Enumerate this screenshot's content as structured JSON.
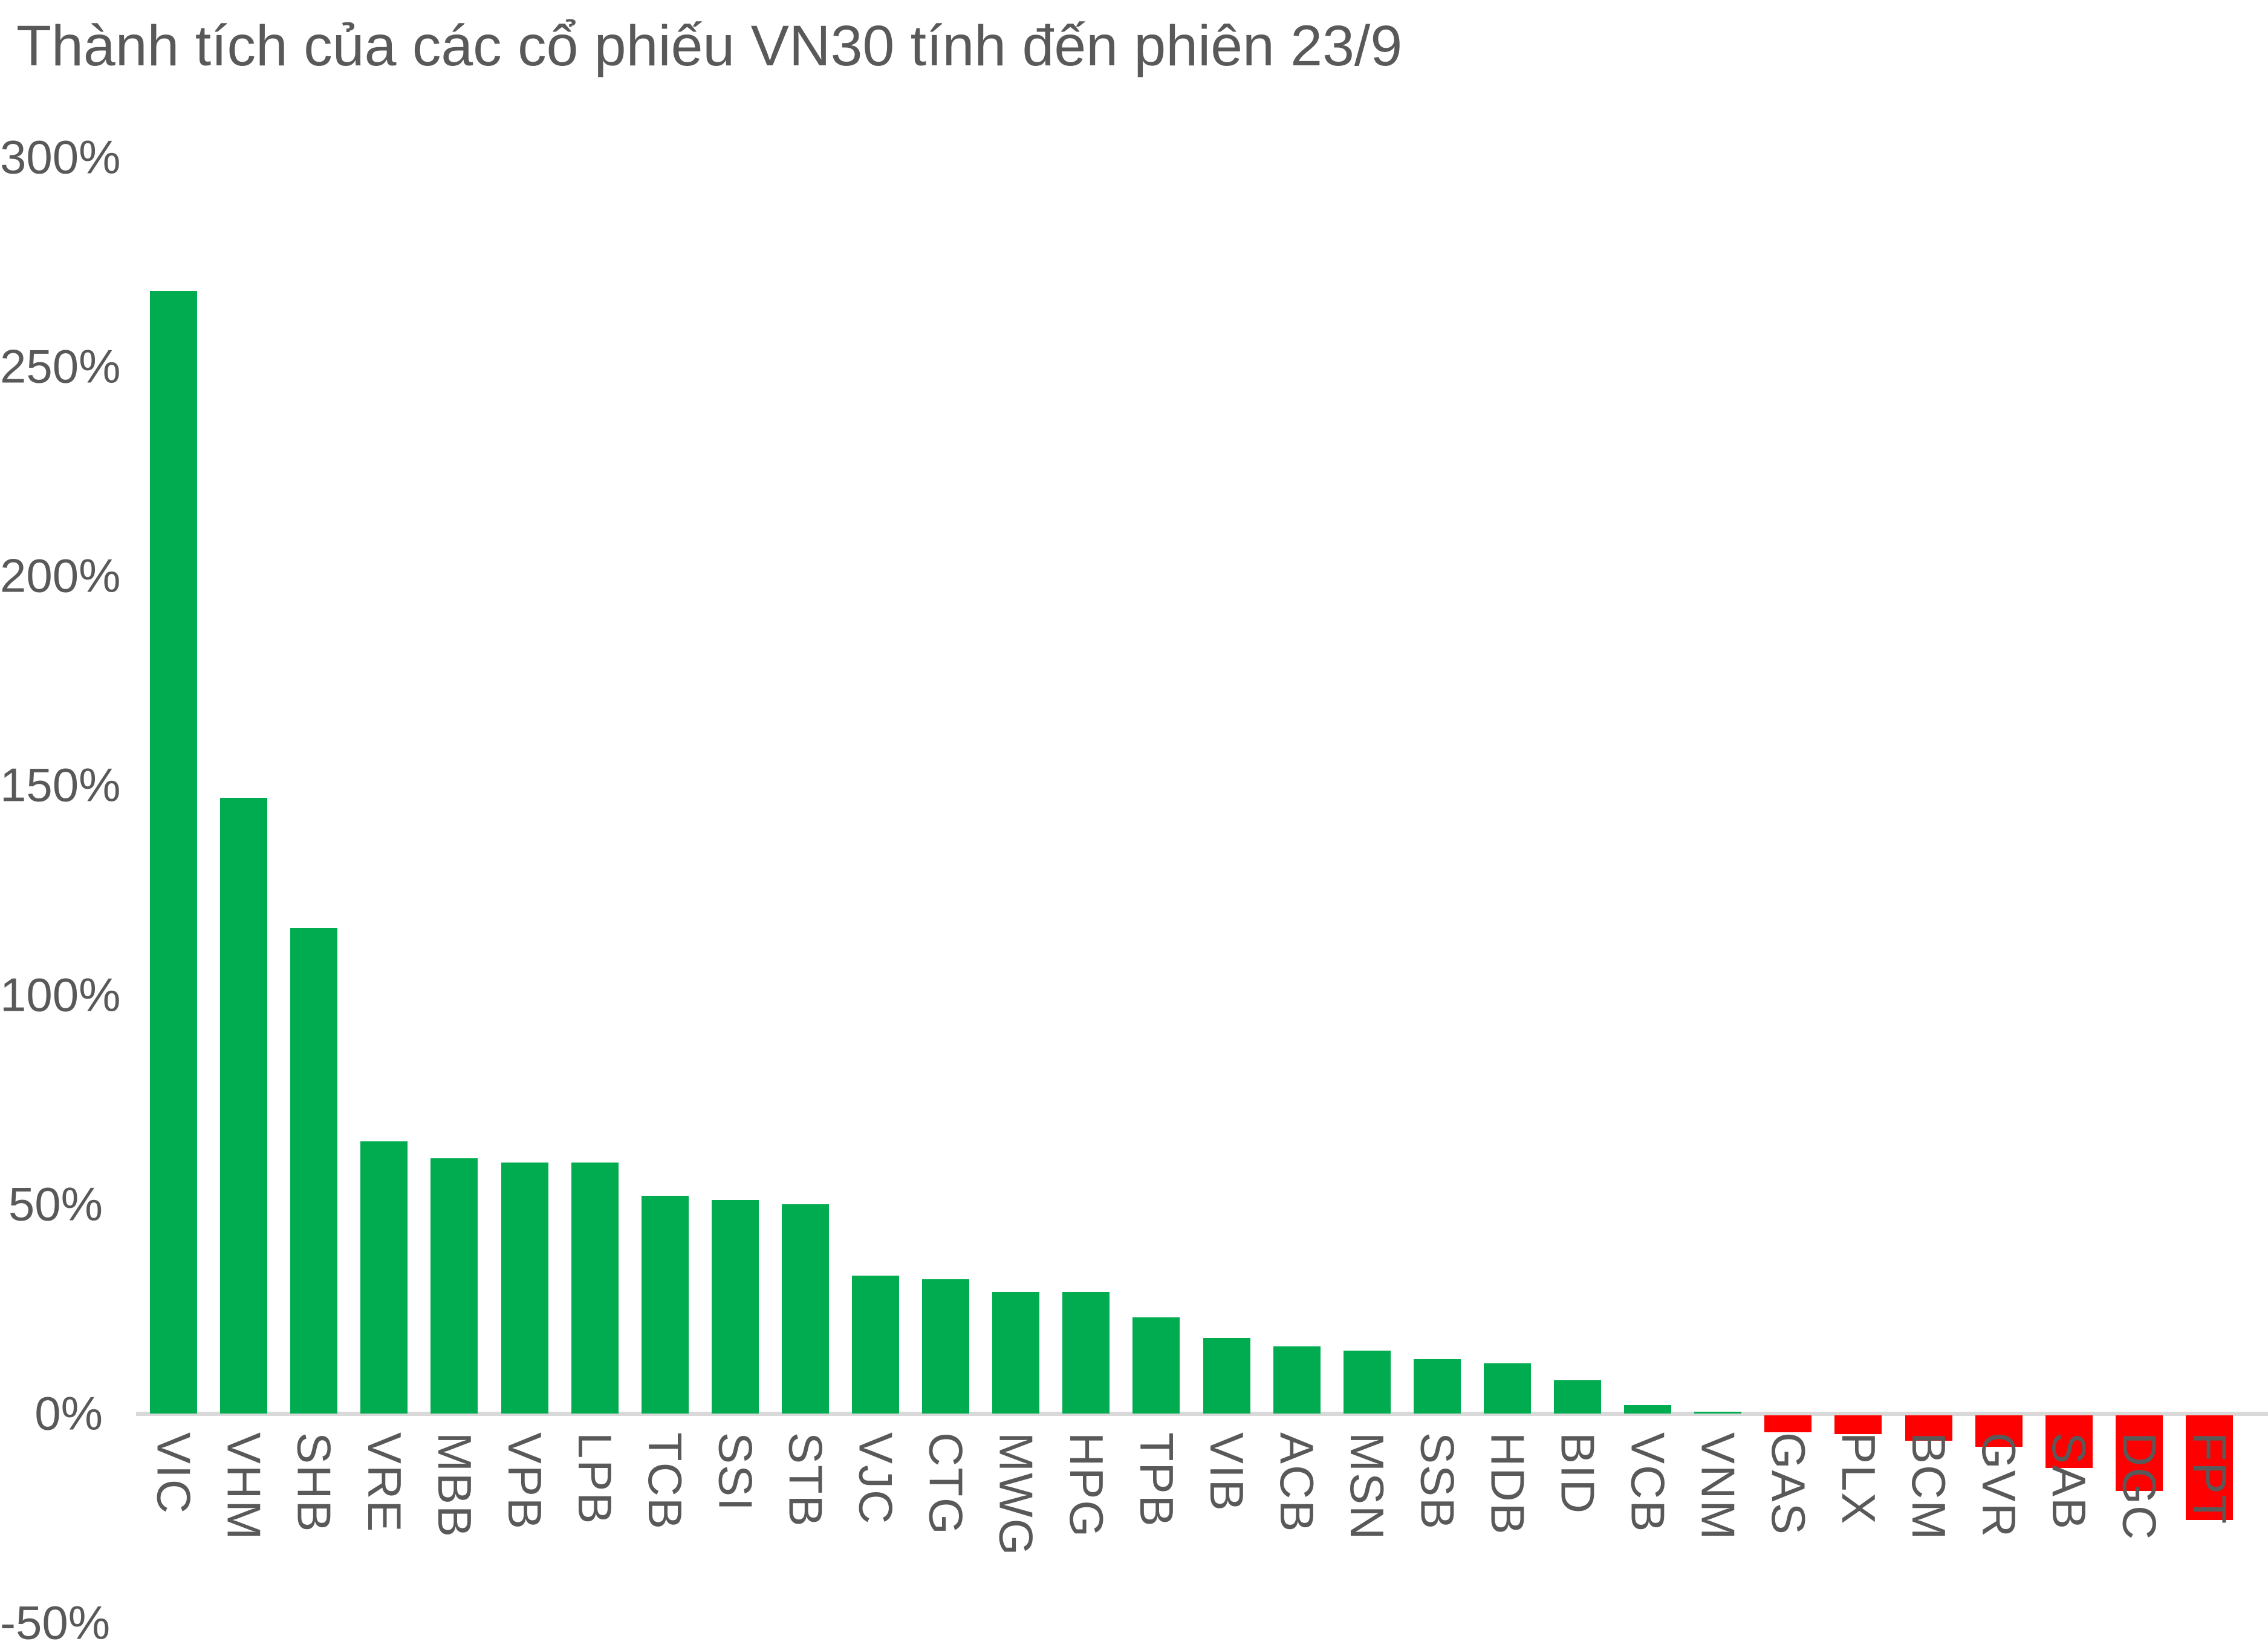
{
  "page": {
    "background": "#FFFFFF"
  },
  "chart_data": {
    "type": "bar",
    "title": "Thành tích của các cổ phiếu VN30 tính đến phiên 23/9",
    "xlabel": "",
    "ylabel": "",
    "unit": "%",
    "categories": [
      "VIC",
      "VHM",
      "SHB",
      "VRE",
      "MBB",
      "VPB",
      "LPB",
      "TCB",
      "SSI",
      "STB",
      "VJC",
      "CTG",
      "MWG",
      "HPG",
      "TPB",
      "VIB",
      "ACB",
      "MSN",
      "SSB",
      "HDB",
      "BID",
      "VCB",
      "VNM",
      "GAS",
      "PLX",
      "BCM",
      "GVR",
      "SAB",
      "DGC",
      "FPT"
    ],
    "values": [
      268,
      147,
      116,
      65,
      61,
      60,
      60,
      52,
      51,
      50,
      33,
      32,
      29,
      29,
      23,
      18,
      16,
      15,
      13,
      12,
      8,
      2,
      0.5,
      -4,
      -4.5,
      -6,
      -7.5,
      -12.5,
      -18,
      -25
    ],
    "yticks": [
      {
        "label": "300%",
        "value": 300
      },
      {
        "label": "250%",
        "value": 250
      },
      {
        "label": "200%",
        "value": 200
      },
      {
        "label": "150%",
        "value": 150
      },
      {
        "label": "100%",
        "value": 100
      },
      {
        "label": "50%",
        "value": 50
      },
      {
        "label": "0%",
        "value": 0
      },
      {
        "label": "-50%",
        "value": -50
      }
    ],
    "ylim": [
      -50,
      300
    ],
    "grid": false,
    "legend": false,
    "colors": {
      "positive": "#00AC4F",
      "negative": "#FF0000",
      "text": "#595959",
      "axis_line": "#D9D9D9",
      "background": "#FFFFFF"
    }
  }
}
